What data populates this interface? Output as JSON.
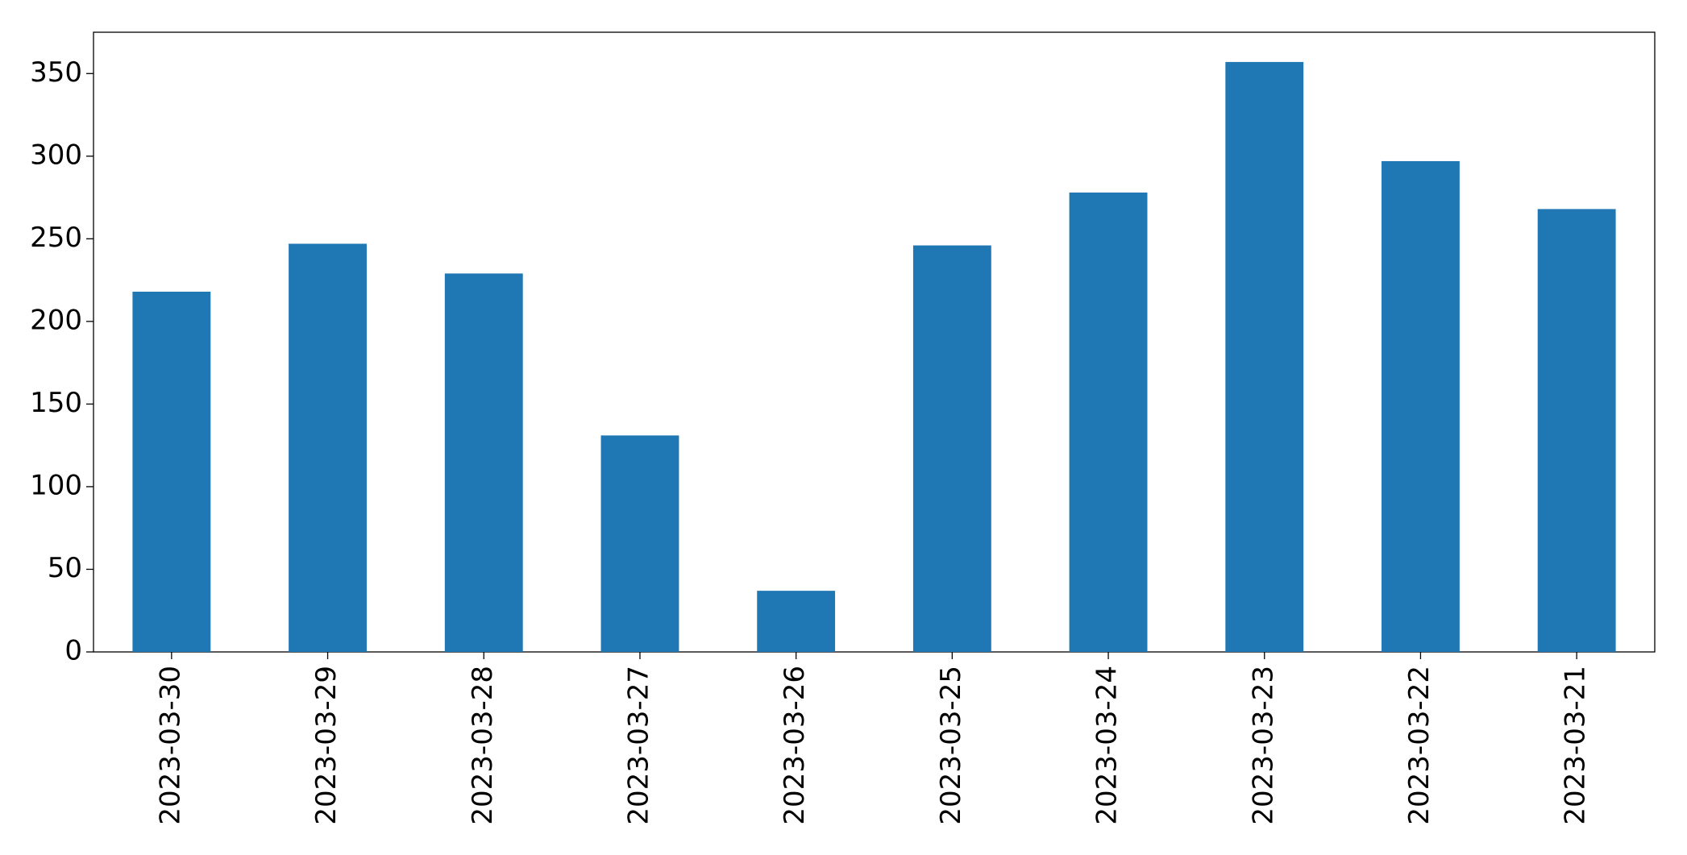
{
  "chart_data": {
    "type": "bar",
    "categories": [
      "2023-03-30",
      "2023-03-29",
      "2023-03-28",
      "2023-03-27",
      "2023-03-26",
      "2023-03-25",
      "2023-03-24",
      "2023-03-23",
      "2023-03-22",
      "2023-03-21"
    ],
    "values": [
      218,
      247,
      229,
      131,
      37,
      246,
      278,
      357,
      297,
      268
    ],
    "color": "#1f77b4",
    "ylim": [
      0,
      375
    ],
    "yticks": [
      0,
      50,
      100,
      150,
      200,
      250,
      300,
      350
    ],
    "grid": false
  }
}
